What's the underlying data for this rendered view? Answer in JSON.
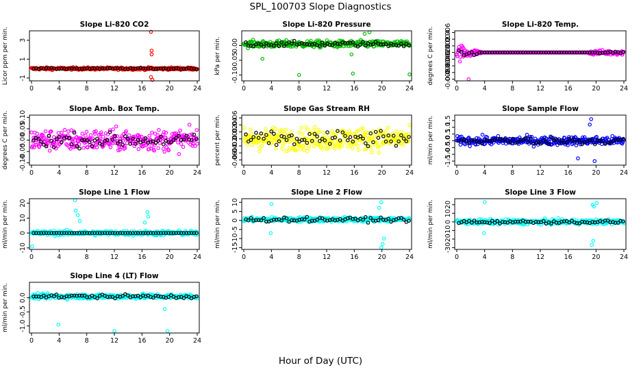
{
  "figure": {
    "title": "SPL_100703  Slope Diagnostics",
    "xlabel": "Hour of Day (UTC)"
  },
  "chart_data": [
    {
      "type": "scatter",
      "title": "Slope Li-820 CO2",
      "ylabel": "Licor ppm per min.",
      "xlim": [
        0,
        24
      ],
      "xticks": [
        0,
        4,
        8,
        12,
        16,
        20,
        24
      ],
      "ylim": [
        -1.3,
        4.0
      ],
      "yticks": [
        -1,
        1,
        3
      ],
      "ytick_labels": [
        "-1",
        "1",
        "3"
      ],
      "color": "#ff0000",
      "base": 0,
      "noise_amp": 0.22,
      "black_amp": 0.12,
      "outliers": [
        {
          "x": 17.3,
          "y": 3.9
        },
        {
          "x": 17.4,
          "y": 1.9
        },
        {
          "x": 17.4,
          "y": 1.5
        },
        {
          "x": 17.5,
          "y": -1.2
        },
        {
          "x": 17.3,
          "y": -0.9
        }
      ]
    },
    {
      "type": "scatter",
      "title": "Slope Li-820 Pressure",
      "ylabel": "kPa per min.",
      "xlim": [
        0,
        24
      ],
      "xticks": [
        0,
        4,
        8,
        12,
        16,
        20,
        24
      ],
      "ylim": [
        -0.12,
        0.05
      ],
      "yticks": [
        -0.1,
        -0.05,
        0.0
      ],
      "ytick_labels": [
        "-0.10",
        "-0.05",
        "0.00"
      ],
      "color": "#00bb00",
      "base": 0.005,
      "noise_amp": 0.02,
      "black_amp": 0.015,
      "outliers": [
        {
          "x": 8.0,
          "y": -0.1
        },
        {
          "x": 15.8,
          "y": -0.095
        },
        {
          "x": 24.0,
          "y": -0.098
        },
        {
          "x": 17.5,
          "y": 0.04
        },
        {
          "x": 18.2,
          "y": 0.045
        },
        {
          "x": 2.7,
          "y": -0.045
        },
        {
          "x": 15.6,
          "y": -0.03
        }
      ]
    },
    {
      "type": "scatter",
      "title": "Slope Li-820 Temp.",
      "ylabel": "degrees C per min.",
      "xlim": [
        0,
        24
      ],
      "xticks": [
        0,
        4,
        8,
        12,
        16,
        20,
        24
      ],
      "ylim": [
        -0.0085,
        0.0065
      ],
      "yticks": [
        -0.008,
        -0.006,
        -0.004,
        -0.002,
        0.0,
        0.002,
        0.004,
        0.006
      ],
      "ytick_labels": [
        "-0.008",
        "-0.006",
        "-0.004",
        "-0.002",
        "0.000",
        "0.002",
        "0.004",
        "0.006"
      ],
      "color": "#ff00ff",
      "base": 0.0,
      "noise_amp": 0.0,
      "black_amp": 0.0,
      "early_amp": 0.0045,
      "late_amp": 0.0012,
      "outliers": [
        {
          "x": 1.7,
          "y": -0.008
        }
      ]
    },
    {
      "type": "scatter",
      "title": "Slope Amb. Box Temp.",
      "ylabel": "degrees C per min.",
      "xlim": [
        0,
        24
      ],
      "xticks": [
        0,
        4,
        8,
        12,
        16,
        20,
        24
      ],
      "ylim": [
        -0.11,
        0.11
      ],
      "yticks": [
        -0.1,
        -0.05,
        0.0,
        0.05,
        0.1
      ],
      "ytick_labels": [
        "-0.10",
        "-0.05",
        "0.00",
        "0.05",
        "0.10"
      ],
      "color": "#ff00ff",
      "base": 0.0,
      "noise_amp": 0.08,
      "black_amp": 0.05,
      "outliers": []
    },
    {
      "type": "scatter",
      "title": "Slope Gas Stream RH",
      "ylabel": "percent per min.",
      "xlim": [
        0,
        24
      ],
      "xticks": [
        0,
        4,
        8,
        12,
        16,
        20,
        24
      ],
      "ylim": [
        -0.075,
        0.068
      ],
      "yticks": [
        -0.06,
        -0.04,
        -0.02,
        0.0,
        0.02,
        0.04,
        0.06
      ],
      "ytick_labels": [
        "-0.06",
        "-0.04",
        "-0.02",
        "0.00",
        "0.02",
        "0.04",
        "0.06"
      ],
      "color": "#ffff00",
      "base": 0.0,
      "noise_amp": 0.055,
      "black_amp": 0.04,
      "outliers": []
    },
    {
      "type": "scatter",
      "title": "Slope Sample Flow",
      "ylabel": "ml/min per min.",
      "xlim": [
        0,
        24
      ],
      "xticks": [
        0,
        4,
        8,
        12,
        16,
        20,
        24
      ],
      "ylim": [
        -1.8,
        1.9
      ],
      "yticks": [
        -1.5,
        -1.0,
        -0.5,
        0.0,
        0.5,
        1.0,
        1.5
      ],
      "ytick_labels": [
        "-1.5",
        "-1.0",
        "-0.5",
        "0.0",
        "0.5",
        "1.0",
        "1.5"
      ],
      "color": "#0000ff",
      "base": 0.0,
      "noise_amp": 0.55,
      "black_amp": 0.45,
      "outliers": [
        {
          "x": 19.3,
          "y": 1.6
        },
        {
          "x": 19.1,
          "y": 1.2
        },
        {
          "x": 19.8,
          "y": -1.5
        },
        {
          "x": 17.4,
          "y": -1.3
        }
      ]
    },
    {
      "type": "scatter",
      "title": "Slope Line 1 Flow",
      "ylabel": "ml/min per min.",
      "xlim": [
        0,
        24
      ],
      "xticks": [
        0,
        4,
        8,
        12,
        16,
        20,
        24
      ],
      "ylim": [
        -11,
        23
      ],
      "yticks": [
        -10,
        0,
        10,
        20
      ],
      "ytick_labels": [
        "-10",
        "0",
        "10",
        "20"
      ],
      "color": "#00ffff",
      "base": 0.0,
      "noise_amp": 2.8,
      "black_amp": 0.0,
      "outliers": [
        {
          "x": 6.3,
          "y": 22
        },
        {
          "x": 6.4,
          "y": 15
        },
        {
          "x": 6.7,
          "y": 12
        },
        {
          "x": 7.0,
          "y": 8
        },
        {
          "x": 16.8,
          "y": 14
        },
        {
          "x": 16.9,
          "y": 11
        },
        {
          "x": 0.1,
          "y": -9
        },
        {
          "x": 16.4,
          "y": 7
        }
      ]
    },
    {
      "type": "scatter",
      "title": "Slope Line 2 Flow",
      "ylabel": "ml/min per min.",
      "xlim": [
        0,
        24
      ],
      "xticks": [
        0,
        4,
        8,
        12,
        16,
        20,
        24
      ],
      "ylim": [
        -16,
        12
      ],
      "yticks": [
        -15,
        -10,
        -5,
        0,
        5,
        10
      ],
      "ytick_labels": [
        "-15",
        "-10",
        "-5",
        "0",
        "5",
        "10"
      ],
      "color": "#00ffff",
      "base": 0.5,
      "noise_amp": 2.3,
      "black_amp": 2.0,
      "outliers": [
        {
          "x": 19.9,
          "y": 10
        },
        {
          "x": 19.6,
          "y": 7
        },
        {
          "x": 20.1,
          "y": -13
        },
        {
          "x": 19.9,
          "y": -15
        },
        {
          "x": 20.3,
          "y": -10
        },
        {
          "x": 4.0,
          "y": 9
        },
        {
          "x": 3.9,
          "y": -7
        }
      ]
    },
    {
      "type": "scatter",
      "title": "Slope Line 3 Flow",
      "ylabel": "ml/min per min.",
      "xlim": [
        0,
        24
      ],
      "xticks": [
        0,
        4,
        8,
        12,
        16,
        20,
        24
      ],
      "ylim": [
        -32,
        27
      ],
      "yticks": [
        -30,
        -20,
        -10,
        0,
        10,
        20
      ],
      "ytick_labels": [
        "-30",
        "-20",
        "-10",
        "0",
        "10",
        "20"
      ],
      "color": "#00ffff",
      "base": 0.0,
      "noise_amp": 5,
      "black_amp": 3,
      "outliers": [
        {
          "x": 4.0,
          "y": 23
        },
        {
          "x": 19.5,
          "y": 20
        },
        {
          "x": 19.7,
          "y": 18
        },
        {
          "x": 20.1,
          "y": 22
        },
        {
          "x": 19.4,
          "y": -27
        },
        {
          "x": 19.6,
          "y": -22
        },
        {
          "x": 3.9,
          "y": -13
        }
      ]
    },
    {
      "type": "scatter",
      "title": "Slope Line 4 (LT) Flow",
      "ylabel": "ml/min per min.",
      "xlim": [
        0,
        24
      ],
      "xticks": [
        0,
        4,
        8,
        12,
        16,
        20,
        24
      ],
      "ylim": [
        -1.25,
        0.55
      ],
      "yticks": [
        -1.0,
        -0.5,
        0.0
      ],
      "ytick_labels": [
        "-1.0",
        "-0.5",
        "0.0"
      ],
      "color": "#00ffff",
      "base": 0.05,
      "noise_amp": 0.15,
      "black_amp": 0.12,
      "outliers": [
        {
          "x": 12.0,
          "y": -1.18
        },
        {
          "x": 19.7,
          "y": -1.18
        },
        {
          "x": 3.9,
          "y": -0.95
        },
        {
          "x": 19.3,
          "y": -0.4
        }
      ]
    }
  ]
}
